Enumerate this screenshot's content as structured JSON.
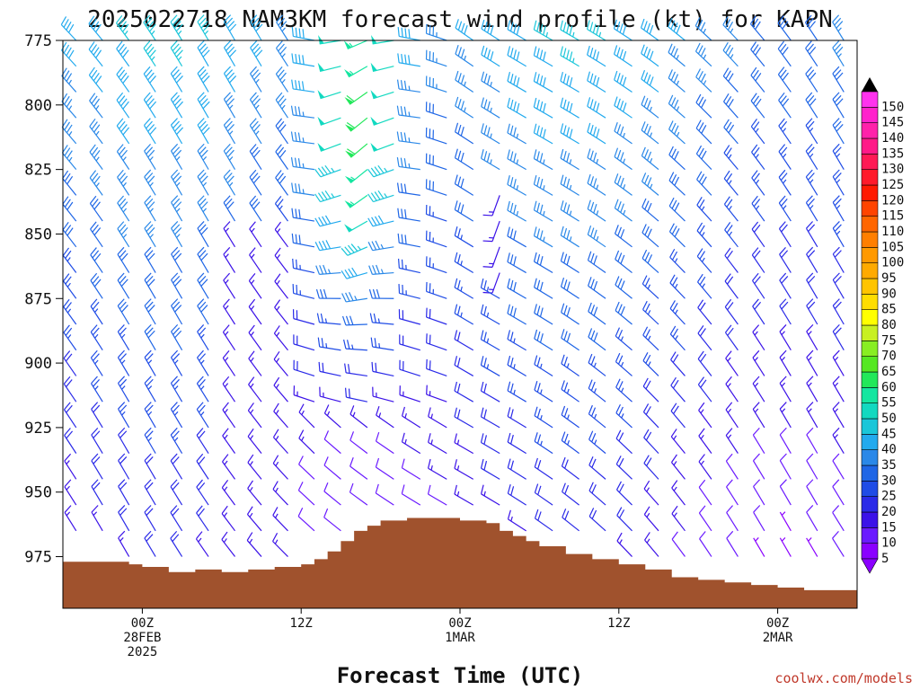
{
  "chart_data": {
    "type": "wind-barb-time-height",
    "title": "2025022718 NAM3KM forecast wind profile (kt) for KAPN",
    "xlabel": "Forecast Time (UTC)",
    "credit": "coolwx.com/models",
    "y_axis": {
      "ticks": [
        "775",
        "800",
        "825",
        "850",
        "875",
        "900",
        "925",
        "950",
        "975"
      ],
      "range_hpa": [
        775,
        995
      ],
      "reversed": true
    },
    "x_axis": {
      "range_hours_from_init": [
        0,
        60
      ],
      "ticks": [
        {
          "hour": 6,
          "lines": [
            "00Z",
            "28FEB",
            "2025"
          ]
        },
        {
          "hour": 18,
          "lines": [
            "12Z"
          ]
        },
        {
          "hour": 30,
          "lines": [
            "00Z",
            "1MAR"
          ]
        },
        {
          "hour": 42,
          "lines": [
            "12Z"
          ]
        },
        {
          "hour": 54,
          "lines": [
            "00Z",
            "2MAR"
          ]
        }
      ]
    },
    "legend": {
      "placement": "right",
      "values": [
        5,
        10,
        15,
        20,
        25,
        30,
        35,
        40,
        45,
        50,
        55,
        60,
        65,
        70,
        75,
        80,
        85,
        90,
        95,
        100,
        105,
        110,
        115,
        120,
        125,
        130,
        135,
        140,
        145,
        150
      ],
      "colors": [
        "#8a00ff",
        "#6a1aff",
        "#3b12e8",
        "#2a2ae8",
        "#1f4ce6",
        "#1f66e6",
        "#2a88e8",
        "#22aaee",
        "#1ac6d9",
        "#12d9c0",
        "#14e6a0",
        "#22e85a",
        "#55e822",
        "#88ee22",
        "#c8f022",
        "#ffff00",
        "#ffdd00",
        "#ffc400",
        "#ffaa00",
        "#ff9900",
        "#ff7f00",
        "#ff6600",
        "#ff4400",
        "#ff1a00",
        "#ff1a2a",
        "#ff1a55",
        "#ff1a88",
        "#ff22aa",
        "#ff22cc",
        "#ff33ee"
      ]
    },
    "terrain_surface_hpa": [
      {
        "hour": 0,
        "p": 977
      },
      {
        "hour": 4,
        "p": 977
      },
      {
        "hour": 5,
        "p": 978
      },
      {
        "hour": 6,
        "p": 979
      },
      {
        "hour": 8,
        "p": 981
      },
      {
        "hour": 10,
        "p": 980
      },
      {
        "hour": 12,
        "p": 981
      },
      {
        "hour": 14,
        "p": 980
      },
      {
        "hour": 16,
        "p": 979
      },
      {
        "hour": 18,
        "p": 978
      },
      {
        "hour": 19,
        "p": 976
      },
      {
        "hour": 20,
        "p": 973
      },
      {
        "hour": 21,
        "p": 969
      },
      {
        "hour": 22,
        "p": 965
      },
      {
        "hour": 23,
        "p": 963
      },
      {
        "hour": 24,
        "p": 961
      },
      {
        "hour": 26,
        "p": 960
      },
      {
        "hour": 28,
        "p": 960
      },
      {
        "hour": 30,
        "p": 961
      },
      {
        "hour": 32,
        "p": 962
      },
      {
        "hour": 33,
        "p": 965
      },
      {
        "hour": 34,
        "p": 967
      },
      {
        "hour": 35,
        "p": 969
      },
      {
        "hour": 36,
        "p": 971
      },
      {
        "hour": 38,
        "p": 974
      },
      {
        "hour": 40,
        "p": 976
      },
      {
        "hour": 42,
        "p": 978
      },
      {
        "hour": 44,
        "p": 980
      },
      {
        "hour": 46,
        "p": 983
      },
      {
        "hour": 48,
        "p": 984
      },
      {
        "hour": 50,
        "p": 985
      },
      {
        "hour": 52,
        "p": 986
      },
      {
        "hour": 54,
        "p": 987
      },
      {
        "hour": 56,
        "p": 988
      },
      {
        "hour": 58,
        "p": 988
      },
      {
        "hour": 60,
        "p": 988
      }
    ],
    "wind_grid": {
      "levels_hpa": [
        775,
        785,
        795,
        805,
        815,
        825,
        835,
        845,
        855,
        865,
        875,
        885,
        895,
        905,
        915,
        925,
        935,
        945,
        955,
        965,
        975
      ],
      "hours_start": 0,
      "hours_step": 2,
      "hours_count": 30
    }
  }
}
